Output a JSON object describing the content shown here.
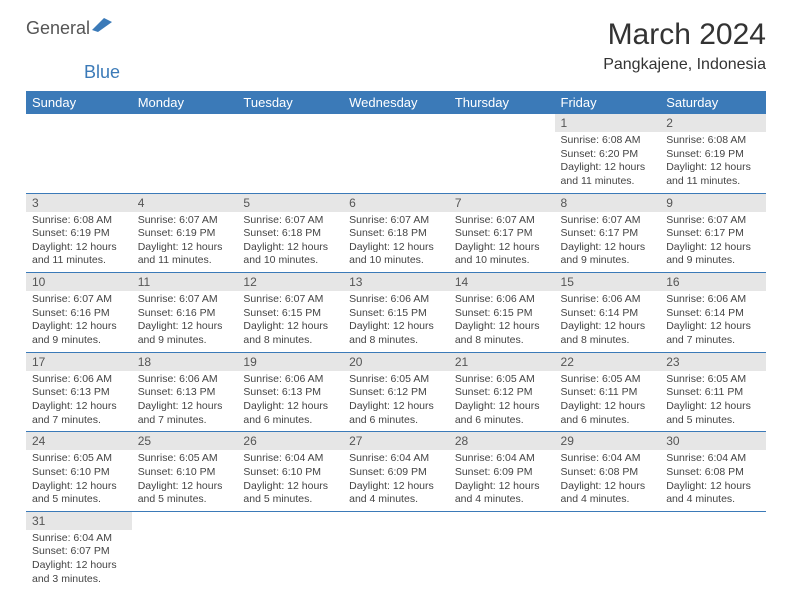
{
  "logo": {
    "part1": "General",
    "part2": "Blue"
  },
  "title": "March 2024",
  "location": "Pangkajene, Indonesia",
  "colors": {
    "header_bg": "#3b7ab8",
    "header_text": "#ffffff",
    "daynum_bg": "#e6e6e6",
    "border": "#3b7ab8"
  },
  "day_headers": [
    "Sunday",
    "Monday",
    "Tuesday",
    "Wednesday",
    "Thursday",
    "Friday",
    "Saturday"
  ],
  "first_weekday": 5,
  "days": [
    {
      "n": "1",
      "sr": "Sunrise: 6:08 AM",
      "ss": "Sunset: 6:20 PM",
      "dl": "Daylight: 12 hours and 11 minutes."
    },
    {
      "n": "2",
      "sr": "Sunrise: 6:08 AM",
      "ss": "Sunset: 6:19 PM",
      "dl": "Daylight: 12 hours and 11 minutes."
    },
    {
      "n": "3",
      "sr": "Sunrise: 6:08 AM",
      "ss": "Sunset: 6:19 PM",
      "dl": "Daylight: 12 hours and 11 minutes."
    },
    {
      "n": "4",
      "sr": "Sunrise: 6:07 AM",
      "ss": "Sunset: 6:19 PM",
      "dl": "Daylight: 12 hours and 11 minutes."
    },
    {
      "n": "5",
      "sr": "Sunrise: 6:07 AM",
      "ss": "Sunset: 6:18 PM",
      "dl": "Daylight: 12 hours and 10 minutes."
    },
    {
      "n": "6",
      "sr": "Sunrise: 6:07 AM",
      "ss": "Sunset: 6:18 PM",
      "dl": "Daylight: 12 hours and 10 minutes."
    },
    {
      "n": "7",
      "sr": "Sunrise: 6:07 AM",
      "ss": "Sunset: 6:17 PM",
      "dl": "Daylight: 12 hours and 10 minutes."
    },
    {
      "n": "8",
      "sr": "Sunrise: 6:07 AM",
      "ss": "Sunset: 6:17 PM",
      "dl": "Daylight: 12 hours and 9 minutes."
    },
    {
      "n": "9",
      "sr": "Sunrise: 6:07 AM",
      "ss": "Sunset: 6:17 PM",
      "dl": "Daylight: 12 hours and 9 minutes."
    },
    {
      "n": "10",
      "sr": "Sunrise: 6:07 AM",
      "ss": "Sunset: 6:16 PM",
      "dl": "Daylight: 12 hours and 9 minutes."
    },
    {
      "n": "11",
      "sr": "Sunrise: 6:07 AM",
      "ss": "Sunset: 6:16 PM",
      "dl": "Daylight: 12 hours and 9 minutes."
    },
    {
      "n": "12",
      "sr": "Sunrise: 6:07 AM",
      "ss": "Sunset: 6:15 PM",
      "dl": "Daylight: 12 hours and 8 minutes."
    },
    {
      "n": "13",
      "sr": "Sunrise: 6:06 AM",
      "ss": "Sunset: 6:15 PM",
      "dl": "Daylight: 12 hours and 8 minutes."
    },
    {
      "n": "14",
      "sr": "Sunrise: 6:06 AM",
      "ss": "Sunset: 6:15 PM",
      "dl": "Daylight: 12 hours and 8 minutes."
    },
    {
      "n": "15",
      "sr": "Sunrise: 6:06 AM",
      "ss": "Sunset: 6:14 PM",
      "dl": "Daylight: 12 hours and 8 minutes."
    },
    {
      "n": "16",
      "sr": "Sunrise: 6:06 AM",
      "ss": "Sunset: 6:14 PM",
      "dl": "Daylight: 12 hours and 7 minutes."
    },
    {
      "n": "17",
      "sr": "Sunrise: 6:06 AM",
      "ss": "Sunset: 6:13 PM",
      "dl": "Daylight: 12 hours and 7 minutes."
    },
    {
      "n": "18",
      "sr": "Sunrise: 6:06 AM",
      "ss": "Sunset: 6:13 PM",
      "dl": "Daylight: 12 hours and 7 minutes."
    },
    {
      "n": "19",
      "sr": "Sunrise: 6:06 AM",
      "ss": "Sunset: 6:13 PM",
      "dl": "Daylight: 12 hours and 6 minutes."
    },
    {
      "n": "20",
      "sr": "Sunrise: 6:05 AM",
      "ss": "Sunset: 6:12 PM",
      "dl": "Daylight: 12 hours and 6 minutes."
    },
    {
      "n": "21",
      "sr": "Sunrise: 6:05 AM",
      "ss": "Sunset: 6:12 PM",
      "dl": "Daylight: 12 hours and 6 minutes."
    },
    {
      "n": "22",
      "sr": "Sunrise: 6:05 AM",
      "ss": "Sunset: 6:11 PM",
      "dl": "Daylight: 12 hours and 6 minutes."
    },
    {
      "n": "23",
      "sr": "Sunrise: 6:05 AM",
      "ss": "Sunset: 6:11 PM",
      "dl": "Daylight: 12 hours and 5 minutes."
    },
    {
      "n": "24",
      "sr": "Sunrise: 6:05 AM",
      "ss": "Sunset: 6:10 PM",
      "dl": "Daylight: 12 hours and 5 minutes."
    },
    {
      "n": "25",
      "sr": "Sunrise: 6:05 AM",
      "ss": "Sunset: 6:10 PM",
      "dl": "Daylight: 12 hours and 5 minutes."
    },
    {
      "n": "26",
      "sr": "Sunrise: 6:04 AM",
      "ss": "Sunset: 6:10 PM",
      "dl": "Daylight: 12 hours and 5 minutes."
    },
    {
      "n": "27",
      "sr": "Sunrise: 6:04 AM",
      "ss": "Sunset: 6:09 PM",
      "dl": "Daylight: 12 hours and 4 minutes."
    },
    {
      "n": "28",
      "sr": "Sunrise: 6:04 AM",
      "ss": "Sunset: 6:09 PM",
      "dl": "Daylight: 12 hours and 4 minutes."
    },
    {
      "n": "29",
      "sr": "Sunrise: 6:04 AM",
      "ss": "Sunset: 6:08 PM",
      "dl": "Daylight: 12 hours and 4 minutes."
    },
    {
      "n": "30",
      "sr": "Sunrise: 6:04 AM",
      "ss": "Sunset: 6:08 PM",
      "dl": "Daylight: 12 hours and 4 minutes."
    },
    {
      "n": "31",
      "sr": "Sunrise: 6:04 AM",
      "ss": "Sunset: 6:07 PM",
      "dl": "Daylight: 12 hours and 3 minutes."
    }
  ]
}
